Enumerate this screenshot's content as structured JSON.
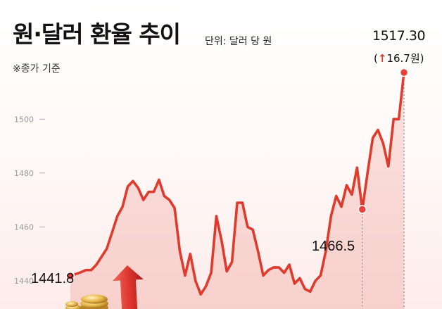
{
  "title": "원·달러 환율 추이",
  "unit_label": "단위: 달러 당 원",
  "note": "※종가 기준",
  "last_value_label": "1517.30",
  "change": {
    "open": "(",
    "arrow": "↑",
    "value": "16.7원",
    "close": ")"
  },
  "colors": {
    "line": "#e03a2c",
    "area": "#f7cfcb",
    "marker": "#e8413a",
    "text": "#111111",
    "tick": "#999999"
  },
  "chart_data": {
    "type": "area",
    "title": "원·달러 환율 추이",
    "ylabel": "단위: 달러 당 원",
    "ylim": [
      1434,
      1522
    ],
    "yticks": [
      1440,
      1460,
      1480,
      1500
    ],
    "grid": false,
    "legend": "none",
    "values": [
      1441.8,
      1442.5,
      1443.2,
      1444.0,
      1444.0,
      1446.0,
      1449.0,
      1452.0,
      1458.0,
      1464.0,
      1467.5,
      1475.0,
      1477.0,
      1474.5,
      1470.0,
      1473.0,
      1473.0,
      1477.5,
      1471.5,
      1470.0,
      1467.0,
      1451.0,
      1442.0,
      1450.0,
      1440.0,
      1435.0,
      1438.0,
      1443.0,
      1464.0,
      1455.0,
      1443.5,
      1447.0,
      1469.0,
      1469.0,
      1460.0,
      1459.0,
      1451.0,
      1442.0,
      1444.0,
      1445.0,
      1445.0,
      1443.0,
      1446.0,
      1439.0,
      1441.0,
      1437.0,
      1436.0,
      1440.0,
      1442.0,
      1451.0,
      1464.0,
      1471.5,
      1467.5,
      1475.5,
      1472.0,
      1482.0,
      1466.5,
      1480.0,
      1493.0,
      1496.0,
      1491.0,
      1482.5,
      1500.0,
      1500.0,
      1517.3
    ],
    "annotations": [
      {
        "label": "1441.8",
        "index": 0,
        "value": 1441.8
      },
      {
        "label": "1466.5",
        "index": 56,
        "value": 1466.5
      },
      {
        "label": "1517.30",
        "index": 64,
        "value": 1517.3
      }
    ]
  }
}
